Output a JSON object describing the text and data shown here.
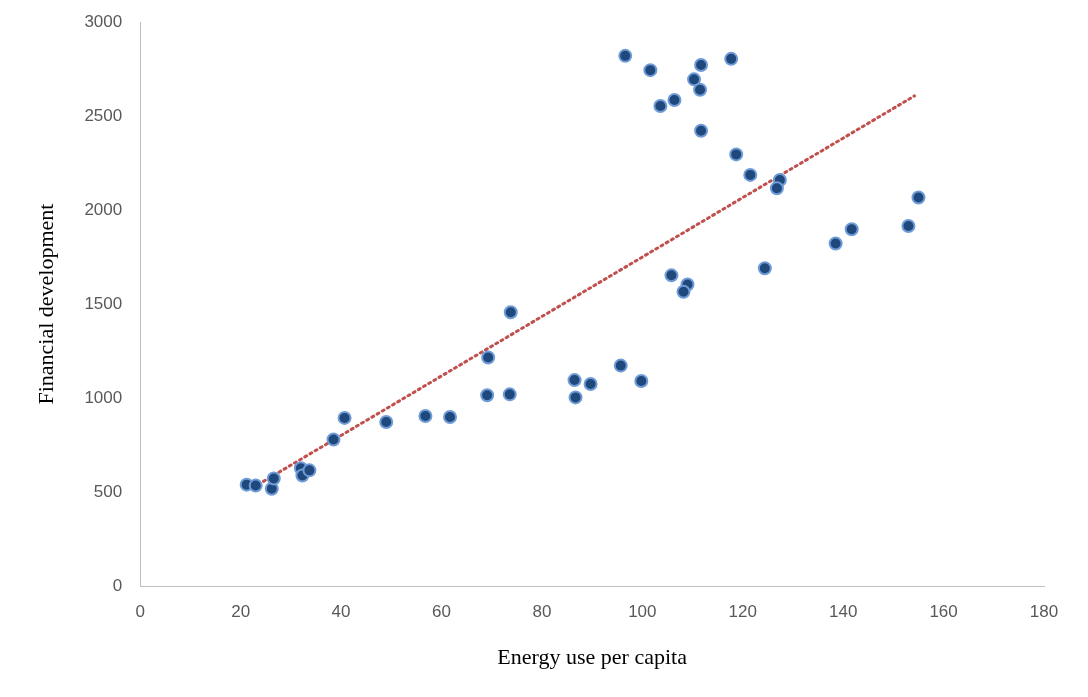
{
  "chart_data": {
    "type": "scatter",
    "xlabel": "Energy use per capita",
    "ylabel": "Financial development",
    "xlim": [
      0,
      180
    ],
    "xticks": [
      0,
      20,
      40,
      60,
      80,
      100,
      120,
      140,
      160,
      180
    ],
    "ylim": [
      0,
      3000
    ],
    "yticks": [
      0,
      500,
      1000,
      1500,
      2000,
      2500,
      3000
    ],
    "grid": false,
    "legend": false,
    "marker": "circle",
    "series": [
      {
        "type": "scatter",
        "color": "#1f497d",
        "x": [
          21.2,
          23.0,
          26.2,
          26.6,
          32.0,
          32.3,
          33.7,
          38.5,
          40.7,
          49.0,
          56.8,
          61.7,
          69.1,
          73.6,
          69.3,
          73.8,
          86.5,
          86.7,
          89.7,
          95.7,
          99.8,
          96.6,
          101.6,
          111.7,
          117.7,
          110.3,
          111.5,
          103.6,
          106.4,
          111.7,
          118.7,
          121.5,
          127.4,
          126.8,
          155.0,
          153.0,
          141.7,
          138.5,
          124.4,
          105.8,
          109.0,
          108.2
        ],
        "values": [
          540,
          535,
          518,
          573,
          627,
          589,
          616,
          780,
          895,
          873,
          905,
          900,
          1015,
          1020,
          1216,
          1457,
          1096,
          1004,
          1075,
          1173,
          1091,
          2820,
          2744,
          2771,
          2804,
          2695,
          2640,
          2553,
          2585,
          2422,
          2296,
          2187,
          2160,
          2116,
          2067,
          1915,
          1898,
          1822,
          1691,
          1653,
          1604,
          1566
        ]
      },
      {
        "type": "line",
        "color": "#c0504d",
        "line_style": "dotted",
        "marker": "none",
        "x": [
          22.5,
          154.2
        ],
        "values": [
          525,
          2607
        ]
      }
    ]
  }
}
